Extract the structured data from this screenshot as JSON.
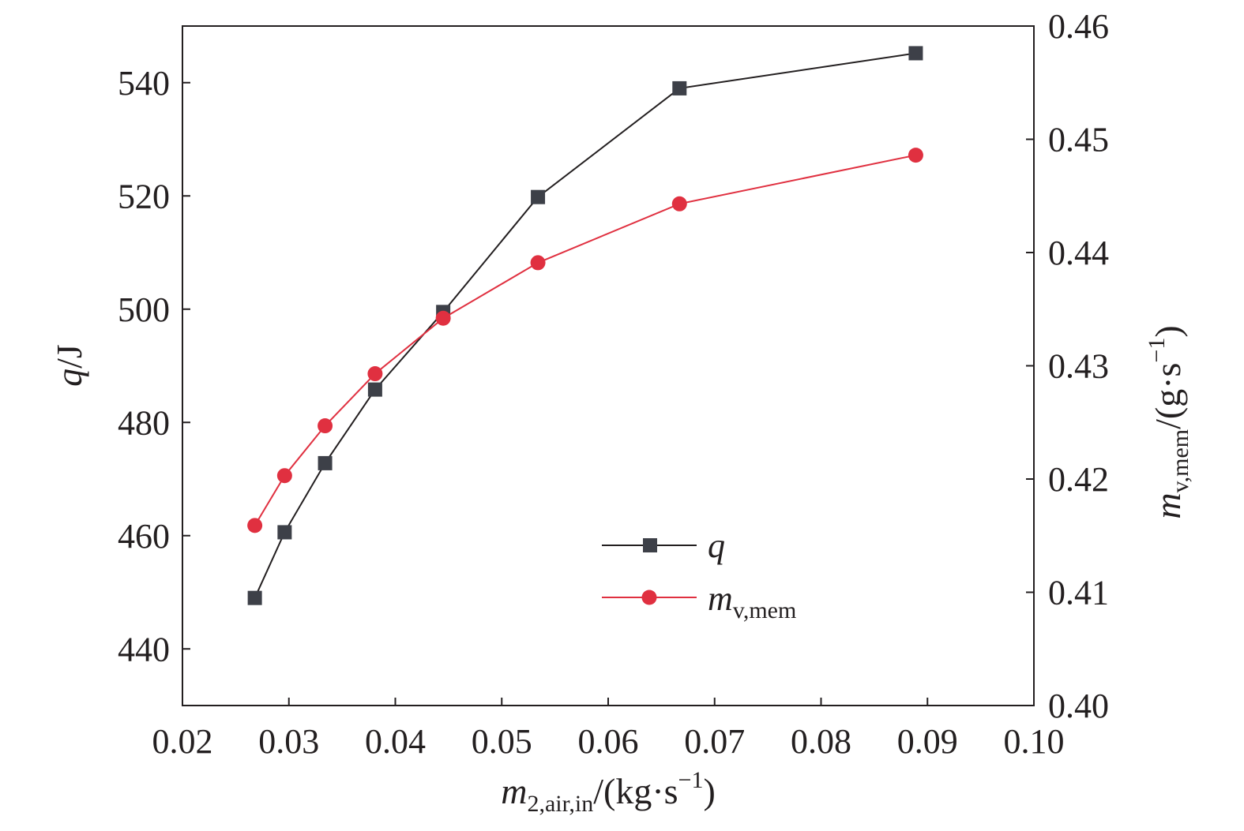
{
  "chart_data": {
    "type": "line",
    "x": [
      0.0268,
      0.0296,
      0.0334,
      0.0381,
      0.0445,
      0.0534,
      0.0667,
      0.0889
    ],
    "xlim": [
      0.02,
      0.1
    ],
    "xticks": [
      0.02,
      0.03,
      0.04,
      0.05,
      0.06,
      0.07,
      0.08,
      0.09,
      0.1
    ],
    "xtick_labels": [
      "0.02",
      "0.03",
      "0.04",
      "0.05",
      "0.06",
      "0.07",
      "0.08",
      "0.09",
      "0.10"
    ],
    "xlabel": {
      "main": "m",
      "sub": "2,air,in",
      "unit": "/(kg·s",
      "sup": "−1",
      "close": ")"
    },
    "y_left": {
      "lim": [
        430,
        550
      ],
      "ticks": [
        440,
        460,
        480,
        500,
        520,
        540
      ],
      "tick_labels": [
        "440",
        "460",
        "480",
        "500",
        "520",
        "540"
      ],
      "label": {
        "main": "q",
        "unit": "/J"
      }
    },
    "y_right": {
      "lim": [
        0.4,
        0.46
      ],
      "ticks": [
        0.4,
        0.41,
        0.42,
        0.43,
        0.44,
        0.45,
        0.46
      ],
      "tick_labels": [
        "0.40",
        "0.41",
        "0.42",
        "0.43",
        "0.44",
        "0.45",
        "0.46"
      ],
      "label": {
        "main": "m",
        "sub": "v,mem",
        "unit": "/(g·s",
        "sup": "−1",
        "close": ")"
      }
    },
    "series": [
      {
        "name": "q",
        "axis": "left",
        "marker": "square",
        "color": "#231f20",
        "marker_color": "#3d4048",
        "values": [
          449.0,
          460.6,
          472.8,
          485.8,
          499.5,
          519.8,
          539.0,
          545.2
        ]
      },
      {
        "name": "m",
        "name_sub": "v,mem",
        "axis": "right",
        "marker": "circle",
        "color": "#e03040",
        "marker_color": "#e03040",
        "values": [
          0.4159,
          0.4203,
          0.4247,
          0.4293,
          0.4342,
          0.4391,
          0.4443,
          0.4486
        ]
      }
    ],
    "legend_position": "center-right-lower"
  }
}
